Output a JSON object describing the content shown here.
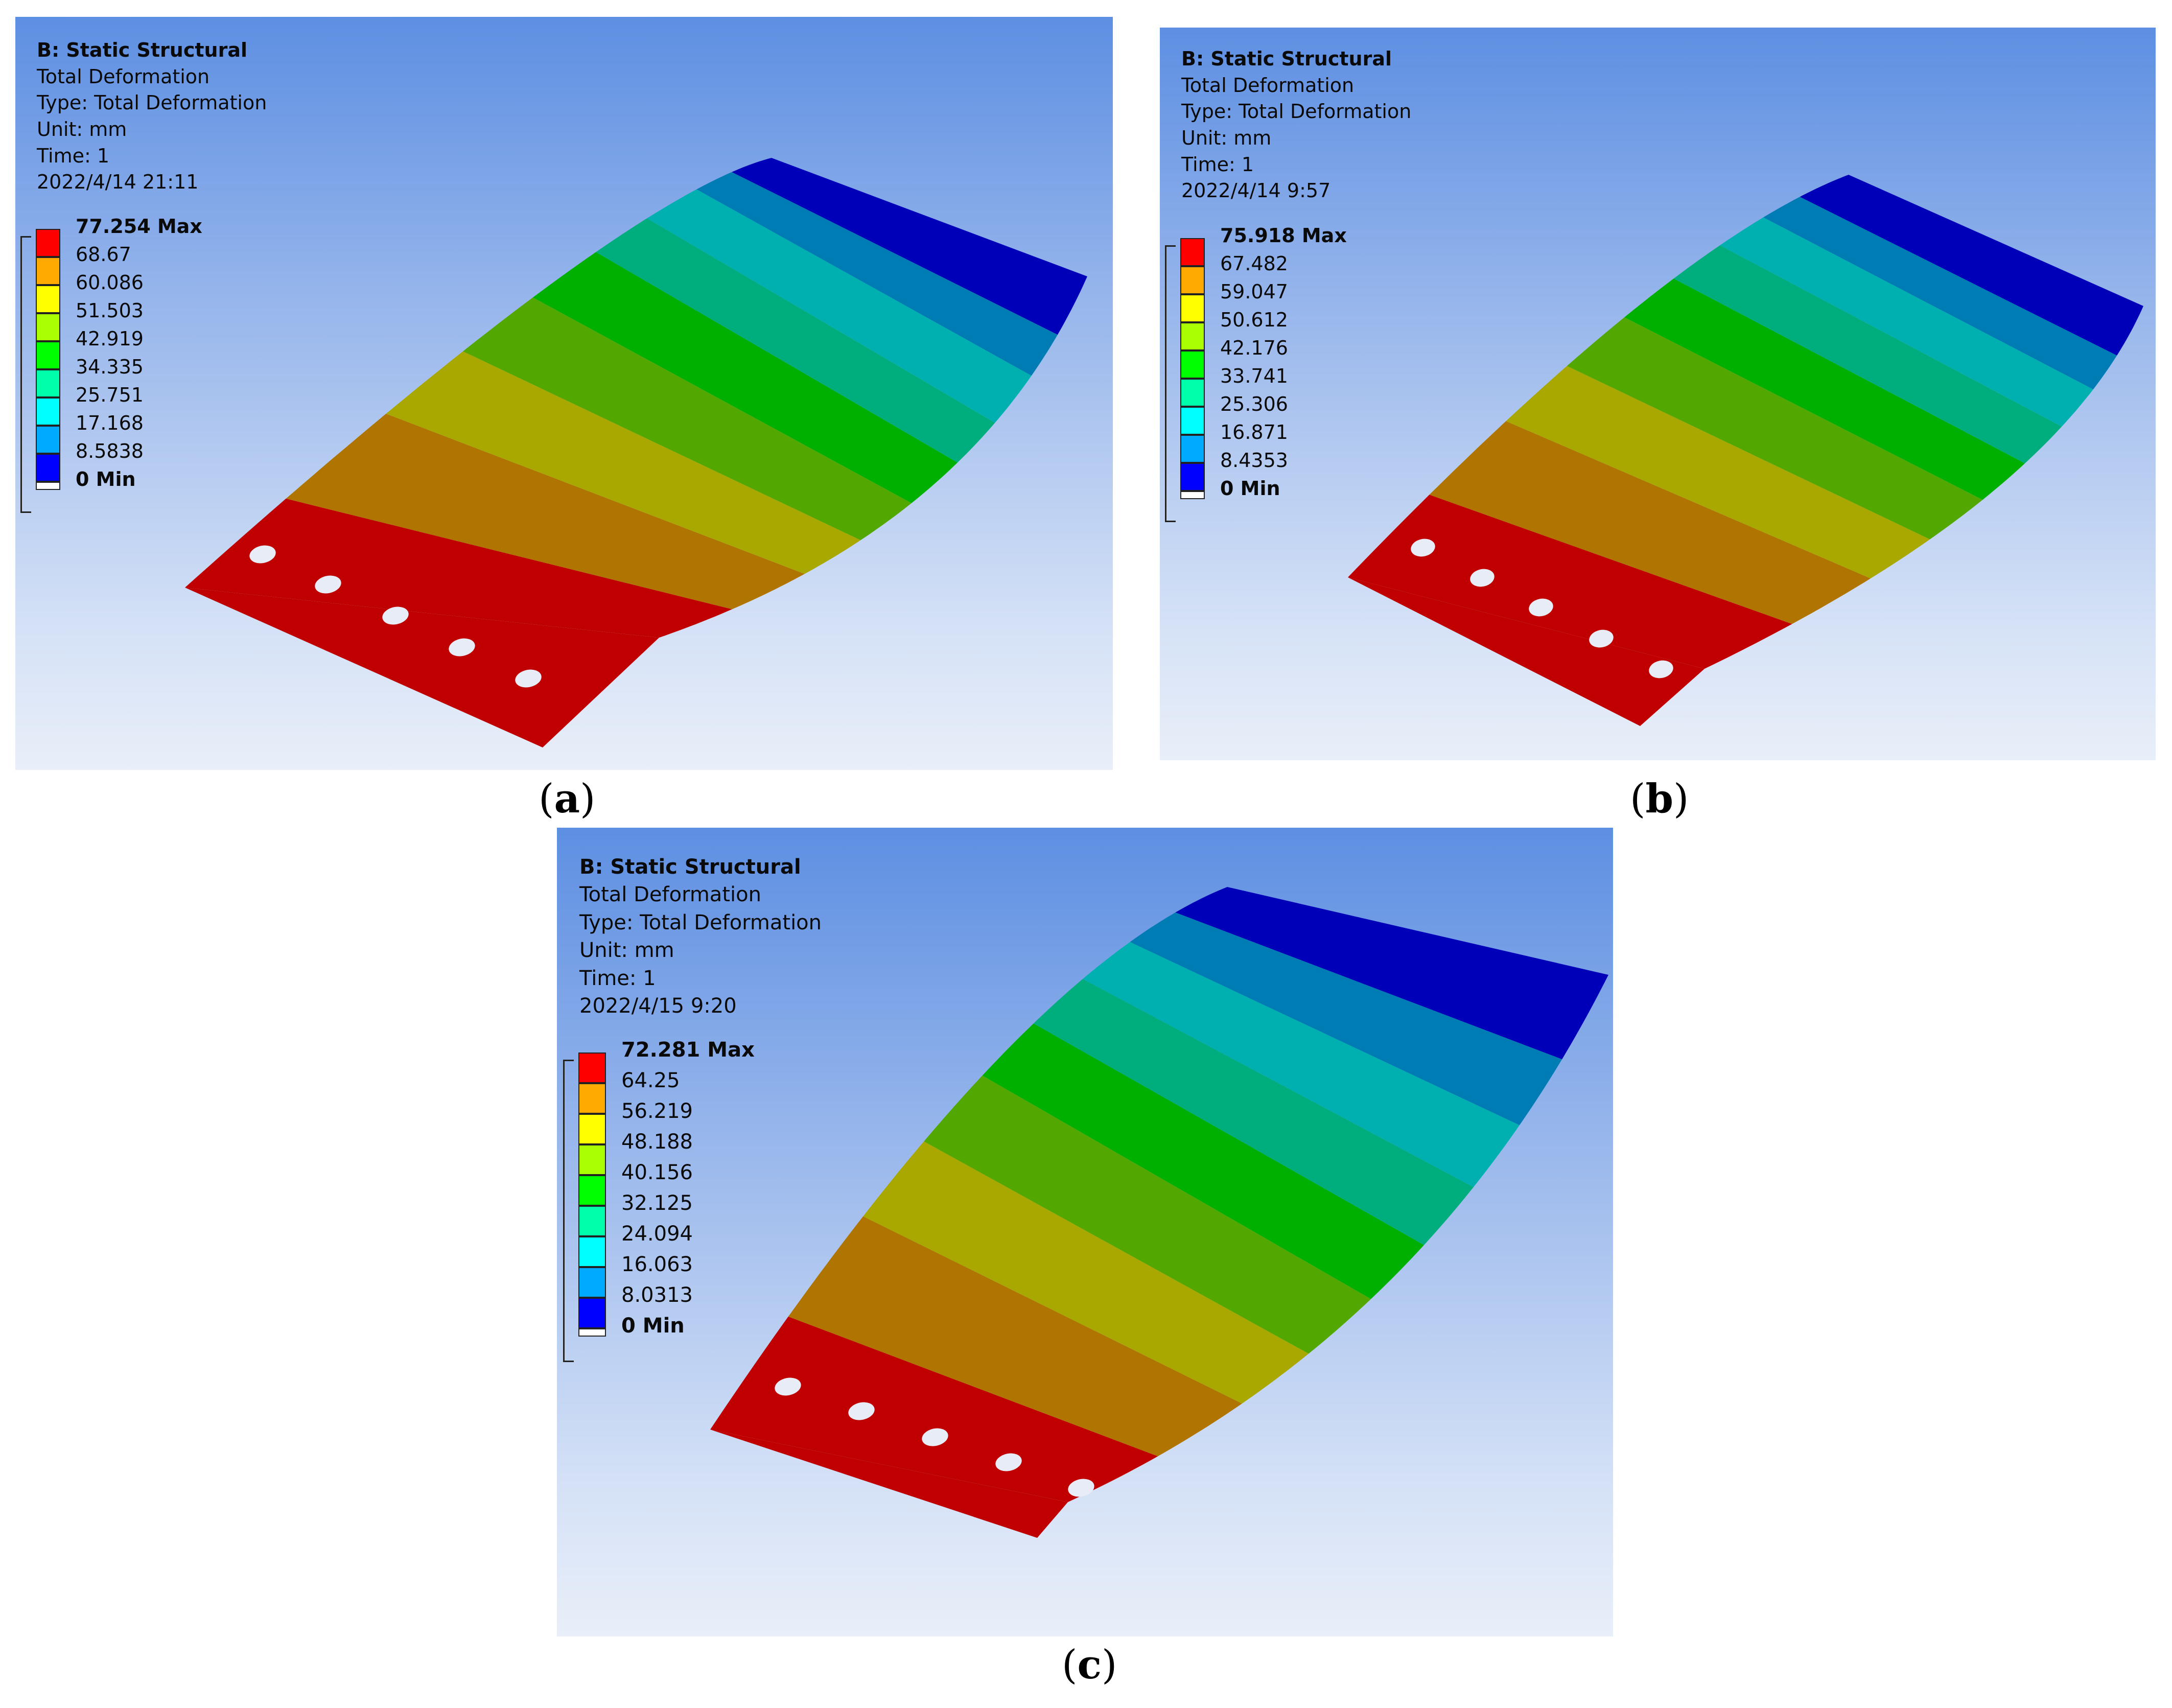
{
  "colors": {
    "bands": [
      "#ff0000",
      "#ffaa00",
      "#ffff00",
      "#aaff00",
      "#00ff00",
      "#00ffaa",
      "#00ffff",
      "#00aaff",
      "#0000ff",
      "#ffffff"
    ],
    "plate_bands": [
      "#0000b8",
      "#007cb4",
      "#00b0b0",
      "#00ad7c",
      "#00b000",
      "#52a800",
      "#a8a800",
      "#b07400",
      "#c00000"
    ]
  },
  "panels": [
    {
      "caption": "a",
      "info": {
        "title": "B: Static Structural",
        "result": "Total Deformation",
        "type": "Type: Total Deformation",
        "unit": "Unit: mm",
        "time": "Time: 1",
        "timestamp": "2022/4/14 21:11"
      },
      "legend": [
        "77.254 Max",
        "68.67",
        "60.086",
        "51.503",
        "42.919",
        "34.335",
        "25.751",
        "17.168",
        "8.5838",
        "0 Min"
      ]
    },
    {
      "caption": "b",
      "info": {
        "title": "B: Static Structural",
        "result": "Total Deformation",
        "type": "Type: Total Deformation",
        "unit": "Unit: mm",
        "time": "Time: 1",
        "timestamp": "2022/4/14 9:57"
      },
      "legend": [
        "75.918 Max",
        "67.482",
        "59.047",
        "50.612",
        "42.176",
        "33.741",
        "25.306",
        "16.871",
        "8.4353",
        "0 Min"
      ]
    },
    {
      "caption": "c",
      "info": {
        "title": "B: Static Structural",
        "result": "Total Deformation",
        "type": "Type: Total Deformation",
        "unit": "Unit: mm",
        "time": "Time: 1",
        "timestamp": "2022/4/15 9:20"
      },
      "legend": [
        "72.281 Max",
        "64.25",
        "56.219",
        "48.188",
        "40.156",
        "32.125",
        "24.094",
        "16.063",
        "8.0313",
        "0 Min"
      ]
    }
  ]
}
